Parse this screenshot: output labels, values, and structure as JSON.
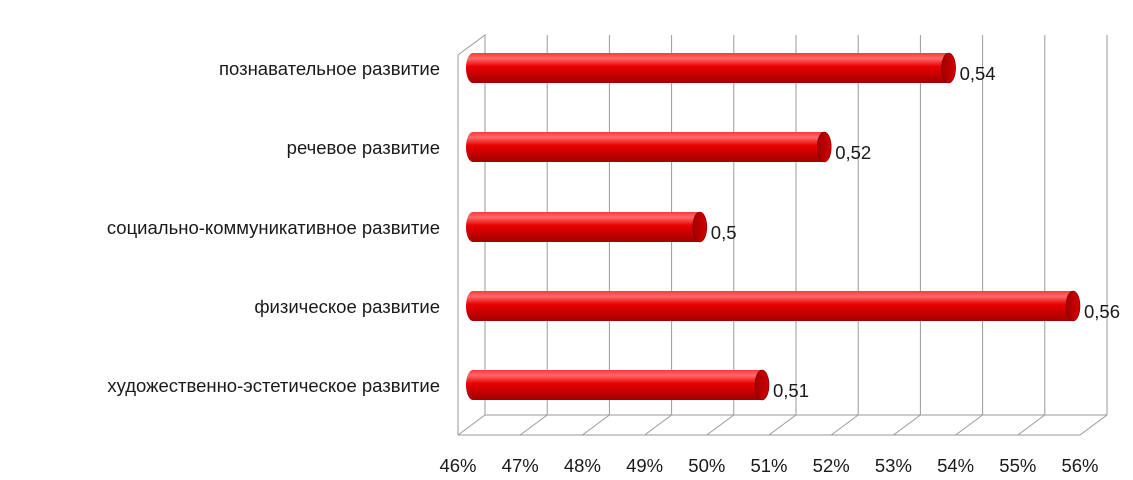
{
  "chart_data": {
    "type": "bar",
    "orientation": "horizontal",
    "style": "3d-cylinder",
    "categories": [
      "познавательное развитие",
      "речевое развитие",
      "социально-коммуникативное развитие",
      "физическое развитие",
      "художественно-эстетическое развитие"
    ],
    "values": [
      0.54,
      0.52,
      0.5,
      0.56,
      0.51
    ],
    "data_labels": [
      "0,54",
      "0,52",
      "0,5",
      "0,56",
      "0,51"
    ],
    "x_ticks": [
      "46%",
      "47%",
      "48%",
      "49%",
      "50%",
      "51%",
      "52%",
      "53%",
      "54%",
      "55%",
      "56%"
    ],
    "xlim": [
      0.46,
      0.56
    ],
    "title": "",
    "xlabel": "",
    "ylabel": "",
    "grid": true,
    "legend": "none",
    "colors": {
      "bar": "#e00000",
      "bar_dark": "#8a0000",
      "bar_light": "#ff6a6a",
      "grid": "#9a9a9a"
    }
  }
}
